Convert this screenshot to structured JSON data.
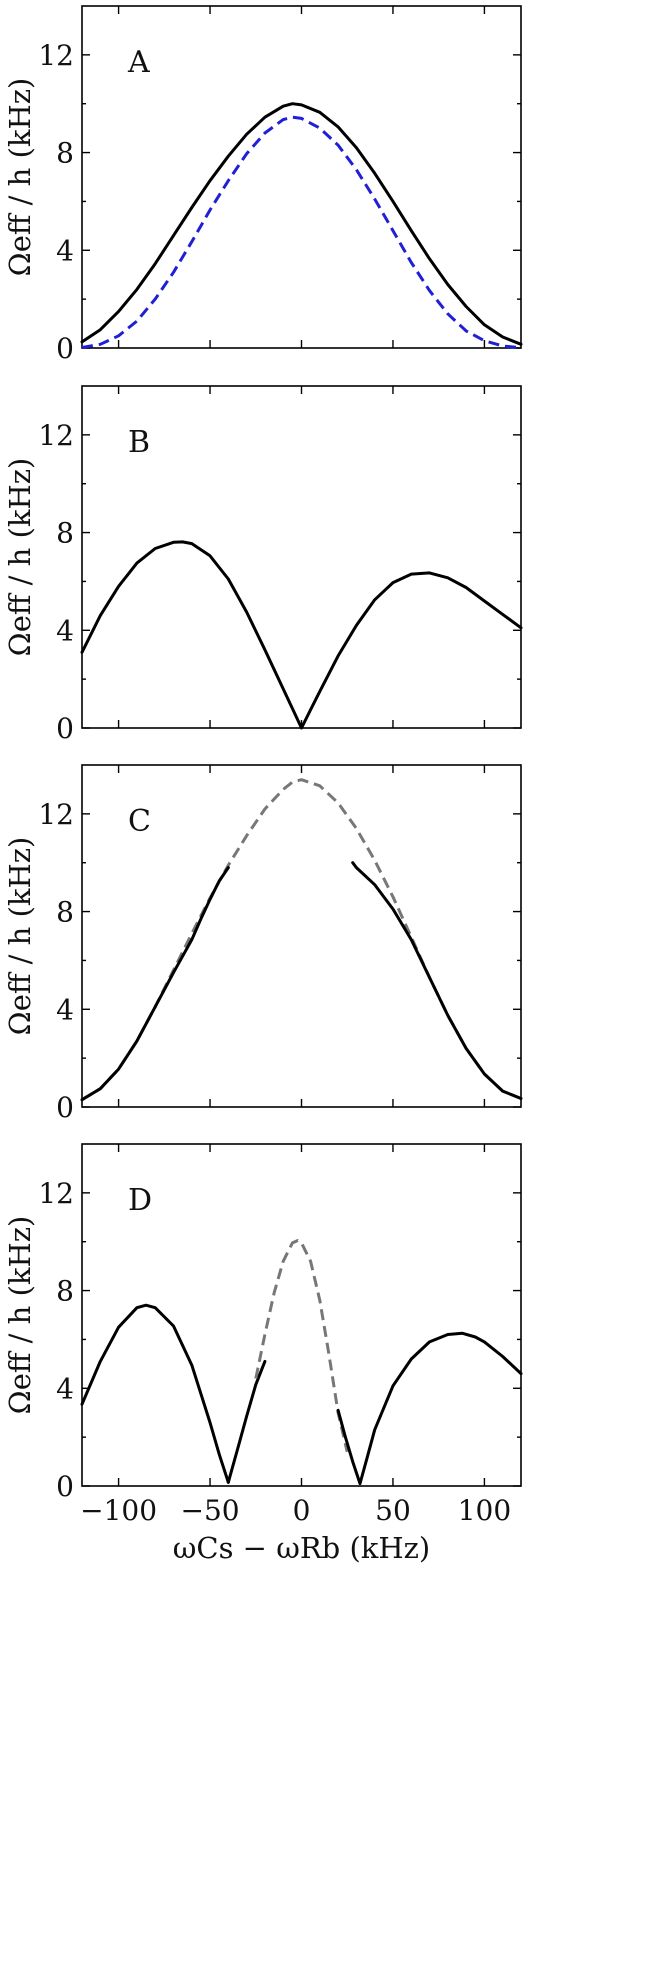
{
  "chart_data": [
    {
      "type": "line",
      "panel": "A",
      "ylabel": "Ωeff / h (kHz)",
      "xlim": [
        -120,
        120
      ],
      "ylim": [
        0,
        14
      ],
      "yticks": [
        0,
        4,
        8,
        12
      ],
      "series": [
        {
          "style": "solid",
          "color": "#000000",
          "x": [
            -120,
            -110,
            -100,
            -90,
            -80,
            -70,
            -60,
            -50,
            -40,
            -30,
            -20,
            -10,
            -5,
            0,
            10,
            20,
            30,
            40,
            50,
            60,
            70,
            80,
            90,
            100,
            110,
            120
          ],
          "y": [
            0.25,
            0.75,
            1.5,
            2.4,
            3.45,
            4.6,
            5.75,
            6.85,
            7.85,
            8.75,
            9.45,
            9.9,
            10.0,
            9.95,
            9.65,
            9.05,
            8.2,
            7.15,
            6.0,
            4.8,
            3.65,
            2.6,
            1.7,
            0.95,
            0.45,
            0.15
          ]
        },
        {
          "style": "dashed",
          "color": "#1f1fd6",
          "x": [
            -120,
            -110,
            -100,
            -90,
            -80,
            -70,
            -60,
            -50,
            -40,
            -30,
            -20,
            -10,
            -5,
            0,
            10,
            20,
            30,
            40,
            50,
            60,
            70,
            80,
            90,
            100,
            110,
            120
          ],
          "y": [
            0.02,
            0.15,
            0.5,
            1.1,
            2.0,
            3.1,
            4.35,
            5.65,
            6.85,
            7.95,
            8.8,
            9.35,
            9.45,
            9.4,
            9.0,
            8.3,
            7.3,
            6.1,
            4.8,
            3.5,
            2.35,
            1.4,
            0.7,
            0.3,
            0.08,
            0.01
          ]
        }
      ]
    },
    {
      "type": "line",
      "panel": "B",
      "ylabel": "Ωeff / h (kHz)",
      "xlim": [
        -120,
        120
      ],
      "ylim": [
        0,
        14
      ],
      "yticks": [
        0,
        4,
        8,
        12
      ],
      "series": [
        {
          "style": "solid",
          "color": "#000000",
          "x": [
            -120,
            -110,
            -100,
            -90,
            -80,
            -70,
            -65,
            -60,
            -50,
            -40,
            -30,
            -20,
            -10,
            -5,
            0,
            5,
            10,
            20,
            30,
            40,
            50,
            60,
            70,
            80,
            90,
            100,
            110,
            120
          ],
          "y": [
            3.1,
            4.6,
            5.8,
            6.75,
            7.35,
            7.6,
            7.62,
            7.55,
            7.05,
            6.1,
            4.75,
            3.2,
            1.6,
            0.8,
            0.0,
            0.75,
            1.5,
            2.95,
            4.2,
            5.25,
            5.95,
            6.3,
            6.35,
            6.15,
            5.75,
            5.2,
            4.65,
            4.1
          ]
        }
      ]
    },
    {
      "type": "line",
      "panel": "C",
      "ylabel": "Ωeff / h (kHz)",
      "xlim": [
        -120,
        120
      ],
      "ylim": [
        0,
        14
      ],
      "yticks": [
        0,
        4,
        8,
        12
      ],
      "series": [
        {
          "style": "dashed",
          "color": "#777777",
          "x": [
            -120,
            -110,
            -100,
            -90,
            -80,
            -70,
            -60,
            -50,
            -40,
            -30,
            -20,
            -10,
            -5,
            0,
            10,
            20,
            30,
            40,
            50,
            60,
            70,
            80,
            90,
            100,
            110,
            120
          ],
          "y": [
            0.3,
            0.75,
            1.55,
            2.7,
            4.1,
            5.6,
            7.1,
            8.55,
            9.9,
            11.1,
            12.2,
            13.0,
            13.3,
            13.4,
            13.15,
            12.45,
            11.4,
            10.1,
            8.6,
            6.95,
            5.3,
            3.75,
            2.4,
            1.35,
            0.65,
            0.35
          ]
        },
        {
          "style": "solid",
          "color": "#000000",
          "x": [
            -120,
            -110,
            -100,
            -90,
            -80,
            -70,
            -60,
            -55,
            -50,
            -45,
            -40
          ],
          "y": [
            0.3,
            0.75,
            1.55,
            2.7,
            4.1,
            5.5,
            6.85,
            7.7,
            8.5,
            9.25,
            9.8
          ]
        },
        {
          "style": "solid",
          "color": "#000000",
          "x": [
            28,
            30,
            40,
            50,
            60,
            70,
            80,
            90,
            100,
            110,
            120
          ],
          "y": [
            10.0,
            9.8,
            9.1,
            8.1,
            6.85,
            5.3,
            3.75,
            2.4,
            1.35,
            0.65,
            0.35
          ]
        }
      ]
    },
    {
      "type": "line",
      "panel": "D",
      "xlabel": "ωCs − ωRb (kHz)",
      "ylabel": "Ωeff / h (kHz)",
      "xlim": [
        -120,
        120
      ],
      "ylim": [
        0,
        14
      ],
      "xticks": [
        -100,
        -50,
        0,
        50,
        100
      ],
      "yticks": [
        0,
        4,
        8,
        12
      ],
      "series": [
        {
          "style": "solid",
          "color": "#000000",
          "x": [
            -120,
            -110,
            -100,
            -90,
            -85,
            -80,
            -70,
            -60,
            -50,
            -45,
            -40
          ],
          "y": [
            3.35,
            5.1,
            6.5,
            7.3,
            7.4,
            7.3,
            6.55,
            4.95,
            2.6,
            1.3,
            0.15
          ]
        },
        {
          "style": "solid",
          "color": "#000000",
          "x": [
            -40,
            -35,
            -30,
            -25,
            -20
          ],
          "y": [
            0.15,
            1.5,
            2.85,
            4.15,
            5.1
          ]
        },
        {
          "style": "dashed",
          "color": "#777777",
          "x": [
            -25,
            -20,
            -15,
            -10,
            -5,
            -2,
            0,
            5,
            10,
            15,
            20,
            25
          ],
          "y": [
            4.4,
            6.2,
            7.9,
            9.2,
            9.95,
            10.05,
            9.95,
            9.2,
            7.6,
            5.4,
            3.0,
            1.4
          ]
        },
        {
          "style": "solid",
          "color": "#000000",
          "x": [
            20,
            24,
            28,
            32,
            36,
            40,
            50,
            60,
            70,
            80,
            88,
            95,
            100,
            110,
            120
          ],
          "y": [
            3.1,
            2.0,
            1.0,
            0.1,
            1.2,
            2.3,
            4.1,
            5.2,
            5.9,
            6.2,
            6.25,
            6.1,
            5.9,
            5.3,
            4.6
          ]
        }
      ]
    }
  ],
  "panels": [
    {
      "label": "A",
      "ylabel": "Ωeff / h (kHz)",
      "ytick_labels": [
        "0",
        "4",
        "8",
        "12"
      ]
    },
    {
      "label": "B",
      "ylabel": "Ωeff / h (kHz)",
      "ytick_labels": [
        "0",
        "4",
        "8",
        "12"
      ]
    },
    {
      "label": "C",
      "ylabel": "Ωeff / h (kHz)",
      "ytick_labels": [
        "0",
        "4",
        "8",
        "12"
      ]
    },
    {
      "label": "D",
      "ylabel": "Ωeff / h (kHz)",
      "ytick_labels": [
        "0",
        "4",
        "8",
        "12"
      ]
    }
  ],
  "xaxis": {
    "label": "ωCs − ωRb (kHz)",
    "tick_labels": [
      "−100",
      "−50",
      "0",
      "50",
      "100"
    ]
  }
}
